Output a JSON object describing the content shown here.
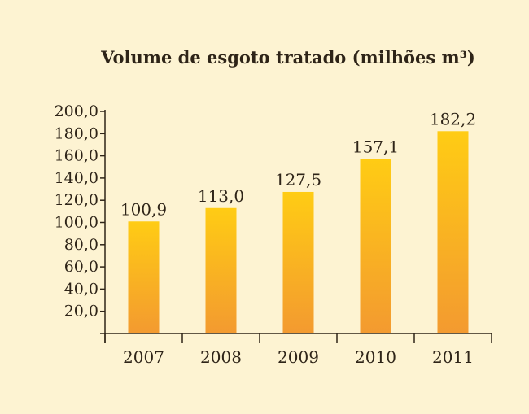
{
  "chart_data": {
    "type": "bar",
    "title": "Volume de esgoto tratado (milhões m³)",
    "categories": [
      "2007",
      "2008",
      "2009",
      "2010",
      "2011"
    ],
    "values": [
      100.9,
      113.0,
      127.5,
      157.1,
      182.2
    ],
    "value_labels": [
      "100,9",
      "113,0",
      "127,5",
      "157,1",
      "182,2"
    ],
    "y_ticks": [
      20,
      40,
      60,
      80,
      100,
      120,
      140,
      160,
      180,
      200
    ],
    "y_tick_labels": [
      "20,0",
      "40,0",
      "60,0",
      "80,0",
      "100,0",
      "120,0",
      "140,0",
      "160,0",
      "180,0",
      "200,0"
    ],
    "ylim": [
      0,
      200
    ],
    "xlabel": "",
    "ylabel": "",
    "grid": false,
    "legend": "none",
    "colors": {
      "background": "#fdf3d2",
      "bar_top": "#ffcc14",
      "bar_bottom": "#f39a30",
      "axis": "#2e2418",
      "text": "#2e2418"
    }
  }
}
